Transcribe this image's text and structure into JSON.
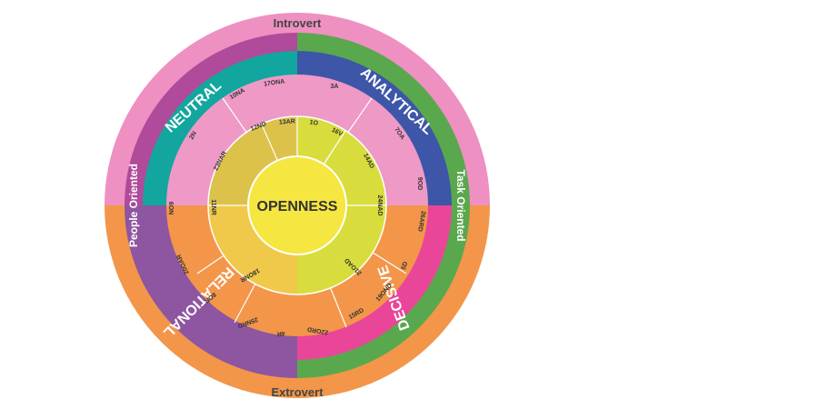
{
  "center_label": "OPENNESS",
  "axes": {
    "top": "Introvert",
    "bottom": "Extrovert",
    "left": "People Oriented",
    "right": "Task Oriented"
  },
  "quadrants": [
    {
      "id": "neutral",
      "label": "NEUTRAL",
      "ring_color": "#12a69e",
      "outer_color": "#ed8fc0",
      "inner_color": "#ef99c6",
      "core_color": "#dcc24b",
      "codes_outer": [
        "10NA",
        "17ONA",
        "2N",
        "6ON"
      ],
      "codes_mid": [
        "12ND",
        "13AR",
        "23NAR",
        "11NR"
      ]
    },
    {
      "id": "analytical",
      "label": "ANALYTICAL",
      "ring_color": "#3d56a7",
      "outer_color": "#5aa84d",
      "inner_color": "#ef99c6",
      "core_color": "#d8dd3d",
      "codes_outer": [
        "3A",
        "7OA"
      ],
      "codes_mid": [
        "1O",
        "16V",
        "14AD"
      ]
    },
    {
      "id": "decisive",
      "label": "DECISIVE",
      "ring_color": "#e9469a",
      "outer_color": "#5aa84d",
      "inner_color": "#f3964a",
      "core_color": "#d8dd3d",
      "codes_outer": [
        "9OD",
        "26ARD",
        "5D",
        "19OND",
        "15RD",
        "22ORD"
      ],
      "codes_mid": [
        "24NAD",
        "21OAD"
      ]
    },
    {
      "id": "relational",
      "label": "RELATIONAL",
      "ring_color": "#8e55a1",
      "outer_color": "#f3964a",
      "inner_color": "#f3964a",
      "core_color": "#f0c84a",
      "codes_outer": [
        "20OAR",
        "8OR",
        "25NRD",
        "4R"
      ],
      "codes_mid": [
        "18ONR"
      ]
    }
  ],
  "colors": {
    "outer_top": "#ee90c1",
    "outer_bottom": "#f3964a",
    "center": "#f5e642"
  }
}
